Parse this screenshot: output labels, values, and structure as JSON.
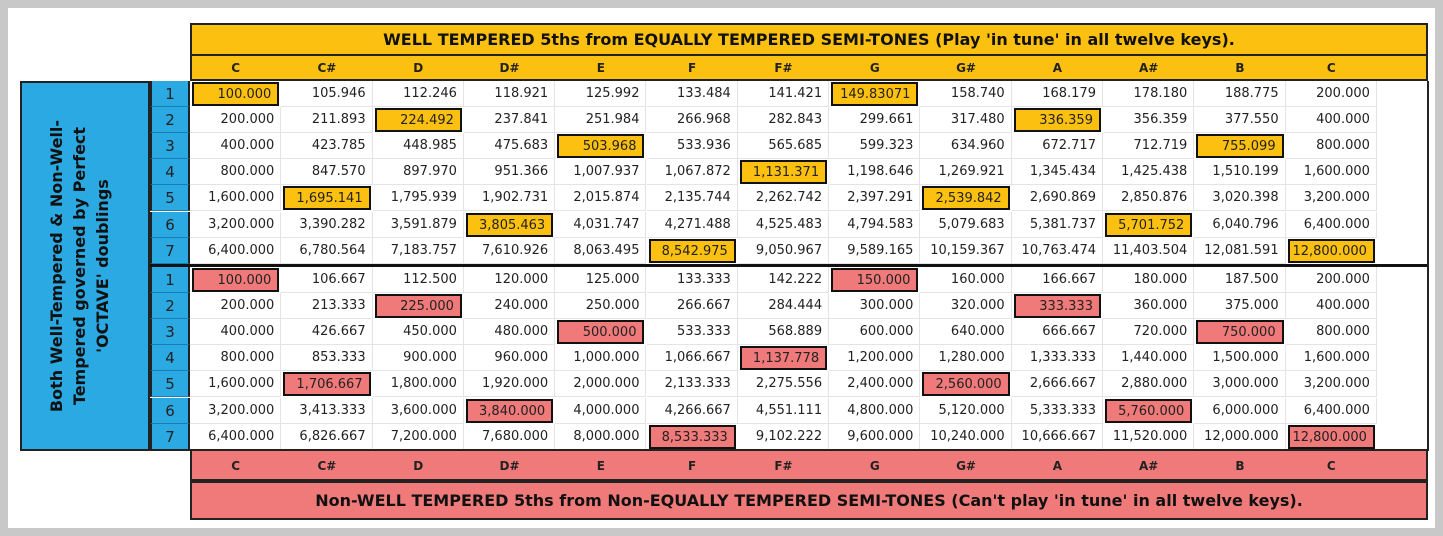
{
  "top_title": "WELL TEMPERED 5ths from EQUALLY TEMPERED SEMI-TONES (Play 'in tune' in all twelve keys).",
  "bottom_title": "Non-WELL TEMPERED 5ths from Non-EQUALLY TEMPERED SEMI-TONES (Can't play 'in tune' in all twelve keys).",
  "side_label": [
    "Both Well-Tempered & Non-Well-",
    "Tempered governed by Perfect",
    "'OCTAVE' doublings"
  ],
  "notes": [
    "C",
    "C#",
    "D",
    "D#",
    "E",
    "F",
    "F#",
    "G",
    "G#",
    "A",
    "A#",
    "B",
    "C"
  ],
  "row_numbers": [
    "1",
    "2",
    "3",
    "4",
    "5",
    "6",
    "7"
  ],
  "colors": {
    "yellow": "#fcc010",
    "red": "#f07a7a",
    "blue": "#2aa9e3"
  },
  "top_rows": [
    [
      "100.000",
      "105.946",
      "112.246",
      "118.921",
      "125.992",
      "133.484",
      "141.421",
      "149.83071",
      "158.740",
      "168.179",
      "178.180",
      "188.775",
      "200.000"
    ],
    [
      "200.000",
      "211.893",
      "224.492",
      "237.841",
      "251.984",
      "266.968",
      "282.843",
      "299.661",
      "317.480",
      "336.359",
      "356.359",
      "377.550",
      "400.000"
    ],
    [
      "400.000",
      "423.785",
      "448.985",
      "475.683",
      "503.968",
      "533.936",
      "565.685",
      "599.323",
      "634.960",
      "672.717",
      "712.719",
      "755.099",
      "800.000"
    ],
    [
      "800.000",
      "847.570",
      "897.970",
      "951.366",
      "1,007.937",
      "1,067.872",
      "1,131.371",
      "1,198.646",
      "1,269.921",
      "1,345.434",
      "1,425.438",
      "1,510.199",
      "1,600.000"
    ],
    [
      "1,600.000",
      "1,695.141",
      "1,795.939",
      "1,902.731",
      "2,015.874",
      "2,135.744",
      "2,262.742",
      "2,397.291",
      "2,539.842",
      "2,690.869",
      "2,850.876",
      "3,020.398",
      "3,200.000"
    ],
    [
      "3,200.000",
      "3,390.282",
      "3,591.879",
      "3,805.463",
      "4,031.747",
      "4,271.488",
      "4,525.483",
      "4,794.583",
      "5,079.683",
      "5,381.737",
      "5,701.752",
      "6,040.796",
      "6,400.000"
    ],
    [
      "6,400.000",
      "6,780.564",
      "7,183.757",
      "7,610.926",
      "8,063.495",
      "8,542.975",
      "9,050.967",
      "9,589.165",
      "10,159.367",
      "10,763.474",
      "11,403.504",
      "12,081.591",
      "12,800.000"
    ]
  ],
  "top_highlights": [
    [
      0,
      0
    ],
    [
      0,
      7
    ],
    [
      1,
      2
    ],
    [
      1,
      9
    ],
    [
      2,
      4
    ],
    [
      2,
      11
    ],
    [
      3,
      6
    ],
    [
      4,
      1
    ],
    [
      4,
      8
    ],
    [
      5,
      3
    ],
    [
      5,
      10
    ],
    [
      6,
      5
    ],
    [
      6,
      12
    ]
  ],
  "bottom_rows": [
    [
      "100.000",
      "106.667",
      "112.500",
      "120.000",
      "125.000",
      "133.333",
      "142.222",
      "150.000",
      "160.000",
      "166.667",
      "180.000",
      "187.500",
      "200.000"
    ],
    [
      "200.000",
      "213.333",
      "225.000",
      "240.000",
      "250.000",
      "266.667",
      "284.444",
      "300.000",
      "320.000",
      "333.333",
      "360.000",
      "375.000",
      "400.000"
    ],
    [
      "400.000",
      "426.667",
      "450.000",
      "480.000",
      "500.000",
      "533.333",
      "568.889",
      "600.000",
      "640.000",
      "666.667",
      "720.000",
      "750.000",
      "800.000"
    ],
    [
      "800.000",
      "853.333",
      "900.000",
      "960.000",
      "1,000.000",
      "1,066.667",
      "1,137.778",
      "1,200.000",
      "1,280.000",
      "1,333.333",
      "1,440.000",
      "1,500.000",
      "1,600.000"
    ],
    [
      "1,600.000",
      "1,706.667",
      "1,800.000",
      "1,920.000",
      "2,000.000",
      "2,133.333",
      "2,275.556",
      "2,400.000",
      "2,560.000",
      "2,666.667",
      "2,880.000",
      "3,000.000",
      "3,200.000"
    ],
    [
      "3,200.000",
      "3,413.333",
      "3,600.000",
      "3,840.000",
      "4,000.000",
      "4,266.667",
      "4,551.111",
      "4,800.000",
      "5,120.000",
      "5,333.333",
      "5,760.000",
      "6,000.000",
      "6,400.000"
    ],
    [
      "6,400.000",
      "6,826.667",
      "7,200.000",
      "7,680.000",
      "8,000.000",
      "8,533.333",
      "9,102.222",
      "9,600.000",
      "10,240.000",
      "10,666.667",
      "11,520.000",
      "12,000.000",
      "12,800.000"
    ]
  ],
  "bottom_highlights": [
    [
      0,
      0
    ],
    [
      0,
      7
    ],
    [
      1,
      2
    ],
    [
      1,
      9
    ],
    [
      2,
      4
    ],
    [
      2,
      11
    ],
    [
      3,
      6
    ],
    [
      4,
      1
    ],
    [
      4,
      8
    ],
    [
      5,
      3
    ],
    [
      5,
      10
    ],
    [
      6,
      5
    ],
    [
      6,
      12
    ]
  ]
}
